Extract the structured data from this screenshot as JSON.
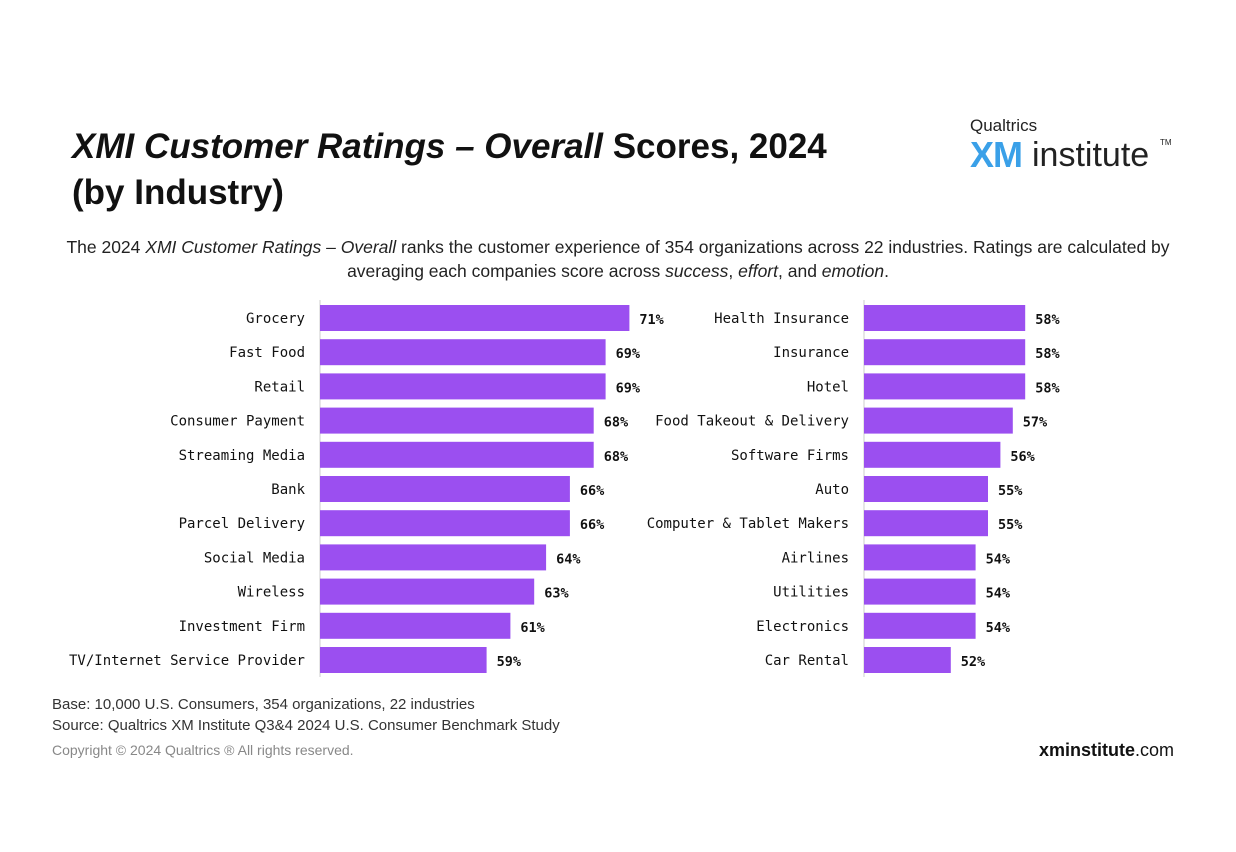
{
  "header": {
    "title_part1": "XMI Customer Ratings – Overall",
    "title_part2": " Scores, 2024",
    "title_line2": "(by Industry)",
    "logo_top": "Qualtrics",
    "logo_xm": "XM",
    "logo_institute": "institute",
    "logo_tm": "TM"
  },
  "subtitle": {
    "p1": "The 2024 ",
    "i1": "XMI Customer Ratings – Overall",
    "p2": " ranks the customer experience of 354 organizations across 22 industries. Ratings are calculated by averaging each companies score across ",
    "i2": "success",
    "p3": ", ",
    "i3": "effort",
    "p4": ", and ",
    "i4": "emotion",
    "p5": "."
  },
  "chart_data": [
    {
      "type": "bar",
      "orientation": "horizontal",
      "categories": [
        "Grocery",
        "Fast Food",
        "Retail",
        "Consumer Payment",
        "Streaming Media",
        "Bank",
        "Parcel Delivery",
        "Social Media",
        "Wireless",
        "Investment Firm",
        "TV/Internet Service Provider"
      ],
      "values": [
        71,
        69,
        69,
        68,
        68,
        66,
        66,
        64,
        63,
        61,
        59
      ],
      "labels": [
        "71%",
        "69%",
        "69%",
        "68%",
        "68%",
        "66%",
        "66%",
        "64%",
        "63%",
        "61%",
        "59%"
      ],
      "xlim": [
        45,
        75
      ],
      "color": "#9b4ff0"
    },
    {
      "type": "bar",
      "orientation": "horizontal",
      "categories": [
        "Health Insurance",
        "Insurance",
        "Hotel",
        "Food Takeout & Delivery",
        "Software Firms",
        "Auto",
        "Computer & Tablet Makers",
        "Airlines",
        "Utilities",
        "Electronics",
        "Car Rental"
      ],
      "values": [
        58,
        58,
        58,
        57,
        56,
        55,
        55,
        54,
        54,
        54,
        52
      ],
      "labels": [
        "58%",
        "58%",
        "58%",
        "57%",
        "56%",
        "55%",
        "55%",
        "54%",
        "54%",
        "54%",
        "52%"
      ],
      "xlim": [
        45,
        75
      ],
      "color": "#9b4ff0"
    }
  ],
  "footer": {
    "base": "Base: 10,000 U.S. Consumers, 354 organizations, 22 industries",
    "source": "Source: Qualtrics XM Institute Q3&4 2024 U.S. Consumer Benchmark Study",
    "copyright": "Copyright © 2024 Qualtrics ® All rights reserved.",
    "site_bold": "xminstitute",
    "site_rest": ".com"
  },
  "colors": {
    "bar": "#9b4ff0",
    "axis": "#cccccc",
    "logo_xm": "#3aa0e8"
  }
}
